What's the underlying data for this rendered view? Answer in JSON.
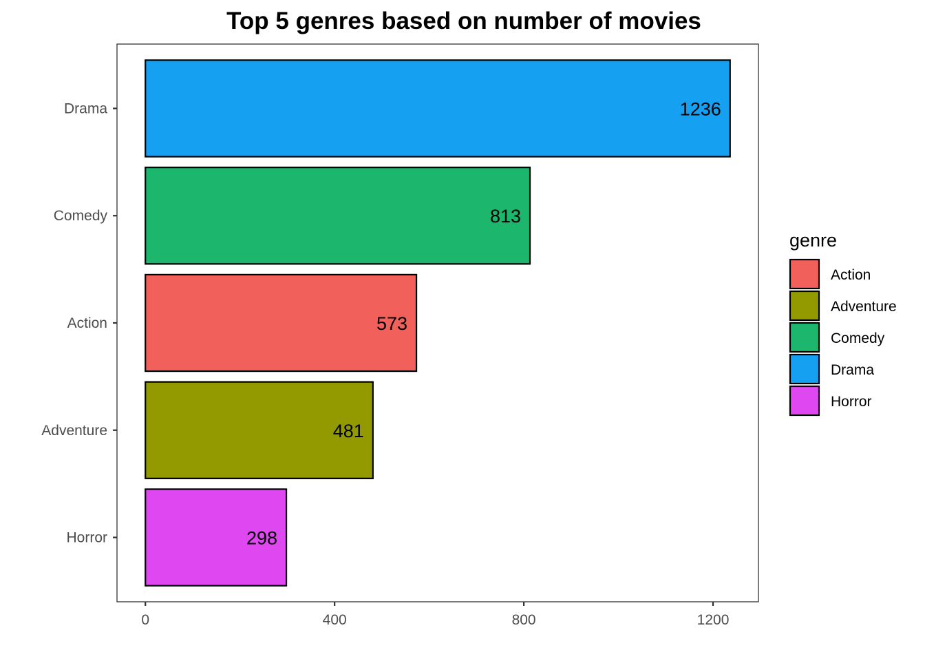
{
  "chart_data": {
    "type": "bar",
    "orientation": "horizontal",
    "title": "Top 5 genres based on number of movies",
    "xlabel": "",
    "ylabel": "",
    "categories": [
      "Drama",
      "Comedy",
      "Action",
      "Adventure",
      "Horror"
    ],
    "values": [
      1236,
      813,
      573,
      481,
      298
    ],
    "data_labels": [
      "1236",
      "813",
      "573",
      "481",
      "298"
    ],
    "bar_colors": [
      "#15a0f2",
      "#1cb76c",
      "#f2605b",
      "#929a00",
      "#df47f1"
    ],
    "xlim": [
      -60,
      1296
    ],
    "x_ticks": [
      0,
      400,
      800,
      1200
    ],
    "x_tick_labels": [
      "0",
      "400",
      "800",
      "1200"
    ],
    "grid": false,
    "legend": {
      "title": "genre",
      "placement": "right",
      "items": [
        {
          "label": "Action",
          "color": "#f2605b"
        },
        {
          "label": "Adventure",
          "color": "#929a00"
        },
        {
          "label": "Comedy",
          "color": "#1cb76c"
        },
        {
          "label": "Drama",
          "color": "#15a0f2"
        },
        {
          "label": "Horror",
          "color": "#df47f1"
        }
      ]
    }
  }
}
